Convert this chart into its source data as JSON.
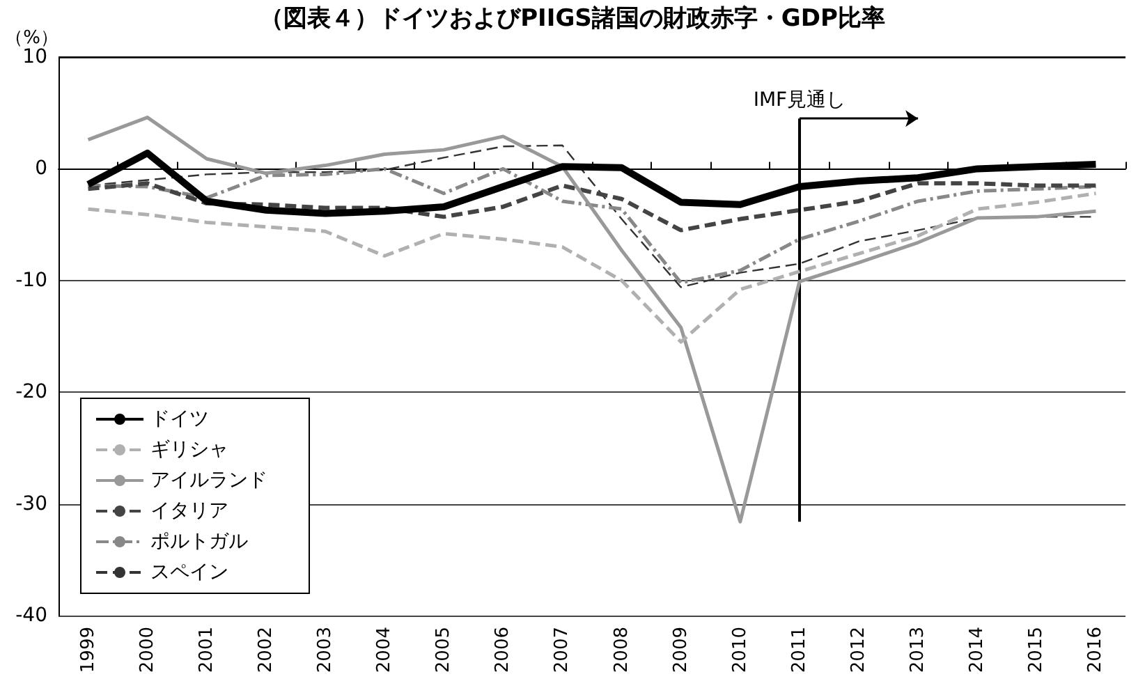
{
  "chart_data": {
    "type": "line",
    "title": "（図表４）ドイツおよびPIIGS諸国の財政赤字・GDP比率",
    "ylabel": "（%）",
    "categories": [
      "1999",
      "2000",
      "2001",
      "2002",
      "2003",
      "2004",
      "2005",
      "2006",
      "2007",
      "2008",
      "2009",
      "2010",
      "2011",
      "2012",
      "2013",
      "2014",
      "2015",
      "2016"
    ],
    "ylim": [
      -40,
      10
    ],
    "yticks": [
      -40,
      -30,
      -20,
      -10,
      0,
      10
    ],
    "grid": "y",
    "legend": "bottom left",
    "marker": "none",
    "ref_lines": [
      {
        "axis": "x",
        "value": "2011",
        "label": "IMF見通し"
      }
    ],
    "series": [
      {
        "name": "ドイツ",
        "color": "#000000",
        "line_style": "solid",
        "values": [
          -1.4,
          1.4,
          -2.9,
          -3.7,
          -4.0,
          -3.8,
          -3.4,
          -1.6,
          0.2,
          0.1,
          -3.0,
          -3.2,
          -1.6,
          -1.1,
          -0.8,
          0,
          0.2,
          0.4
        ]
      },
      {
        "name": "ギリシャ",
        "color": "#b0b0b0",
        "line_style": "dashed",
        "values": [
          -3.6,
          -4.1,
          -4.8,
          -5.2,
          -5.6,
          -7.8,
          -5.8,
          -6.3,
          -7.0,
          -10.0,
          -15.5,
          -10.8,
          -9.2,
          -7.6,
          -6.0,
          -3.6,
          -3.0,
          -2.2
        ]
      },
      {
        "name": "アイルランド",
        "color": "#999999",
        "line_style": "solid",
        "values": [
          2.6,
          4.6,
          0.9,
          -0.4,
          0.3,
          1.3,
          1.7,
          2.9,
          0.2,
          -7.3,
          -14.2,
          -31.6,
          -10.1,
          -8.4,
          -6.6,
          -4.4,
          -4.3,
          -3.8
        ]
      },
      {
        "name": "イタリア",
        "color": "#444444",
        "line_style": "dashed",
        "values": [
          -1.8,
          -1.3,
          -3.1,
          -3.2,
          -3.5,
          -3.5,
          -4.3,
          -3.4,
          -1.5,
          -2.7,
          -5.5,
          -4.5,
          -3.7,
          -2.9,
          -1.3,
          -1.3,
          -1.5,
          -1.5
        ]
      },
      {
        "name": "ポルトガル",
        "color": "#888888",
        "line_style": "dashdot",
        "values": [
          -1.5,
          -1.6,
          -2.6,
          -0.6,
          -0.5,
          0,
          -2.2,
          0,
          -2.9,
          -3.6,
          -10.2,
          -9.1,
          -6.3,
          -4.7,
          -2.9,
          -2.0,
          -1.8,
          -1.6
        ]
      },
      {
        "name": "スペイン",
        "color": "#333333",
        "line_style": "dashed",
        "values": [
          -1.5,
          -1.0,
          -0.5,
          -0.3,
          -0.3,
          -0.1,
          1.0,
          2.0,
          2.1,
          -4.5,
          -10.6,
          -9.3,
          -8.5,
          -6.5,
          -5.5,
          -4.4,
          -4.3,
          -4.3
        ]
      }
    ]
  }
}
